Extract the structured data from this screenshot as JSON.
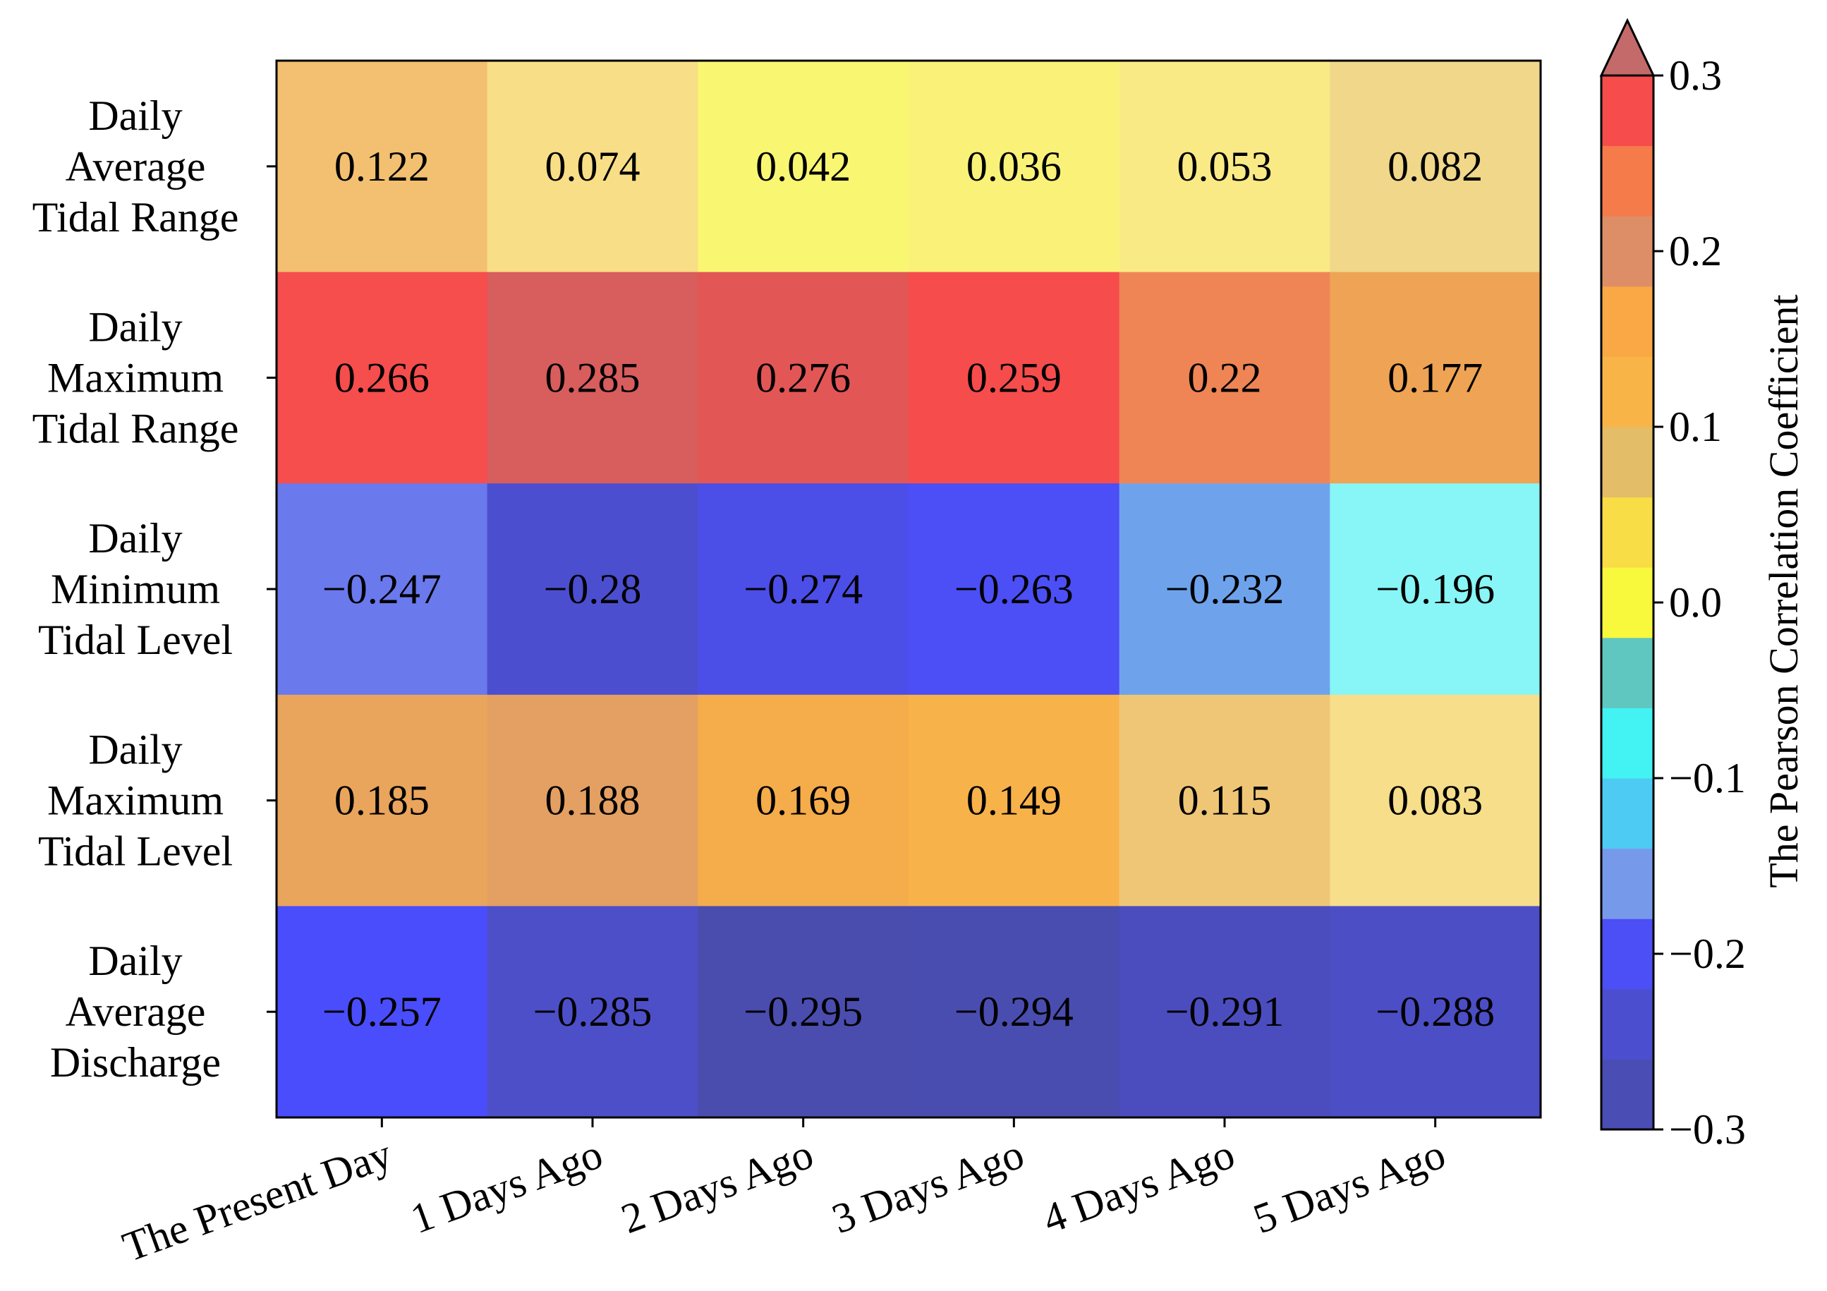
{
  "chart_data": {
    "type": "heatmap",
    "rows": [
      "Daily\nAverage\nTidal Range",
      "Daily\nMaximum\nTidal Range",
      "Daily\nMinimum\nTidal  Level",
      "Daily\nMaximum\nTidal  Level",
      "Daily\nAverage\nDischarge"
    ],
    "columns": [
      "The Present Day",
      "1 Days Ago",
      "2 Days Ago",
      "3 Days Ago",
      "4 Days Ago",
      "5 Days Ago"
    ],
    "values": [
      [
        0.122,
        0.074,
        0.042,
        0.036,
        0.053,
        0.082
      ],
      [
        0.266,
        0.285,
        0.276,
        0.259,
        0.22,
        0.177
      ],
      [
        -0.247,
        -0.28,
        -0.274,
        -0.263,
        -0.232,
        -0.196
      ],
      [
        0.185,
        0.188,
        0.169,
        0.149,
        0.115,
        0.083
      ],
      [
        -0.257,
        -0.285,
        -0.295,
        -0.294,
        -0.291,
        -0.288
      ]
    ],
    "labels": [
      [
        "0.122",
        "0.074",
        "0.042",
        "0.036",
        "0.053",
        "0.082"
      ],
      [
        "0.266",
        "0.285",
        "0.276",
        "0.259",
        "0.22",
        "0.177"
      ],
      [
        "−0.247",
        "−0.28",
        "−0.274",
        "−0.263",
        "−0.232",
        "−0.196"
      ],
      [
        "0.185",
        "0.188",
        "0.169",
        "0.149",
        "0.115",
        "0.083"
      ],
      [
        "−0.257",
        "−0.285",
        "−0.295",
        "−0.294",
        "−0.291",
        "−0.288"
      ]
    ],
    "colorbar": {
      "label": "The Pearson Correlation Coefficient",
      "range": [
        -0.3,
        0.3
      ],
      "extend": "max",
      "ticks": [
        0.3,
        0.2,
        0.1,
        0.0,
        -0.1,
        -0.2,
        -0.3
      ],
      "tick_labels": [
        "0.3",
        "0.2",
        "0.1",
        "0.0",
        "−0.1",
        "−0.2",
        "−0.3"
      ],
      "levels": [
        -0.3,
        -0.26,
        -0.22,
        -0.18,
        -0.14,
        -0.1,
        -0.06,
        -0.02,
        0.02,
        0.06,
        0.1,
        0.14,
        0.18,
        0.22,
        0.26,
        0.3
      ],
      "colors": [
        "#4A4DB4",
        "#4C4ED0",
        "#4B4FF5",
        "#7799EA",
        "#4DCBF2",
        "#43F2F2",
        "#5FC7C0",
        "#F8F83C",
        "#F8DD46",
        "#E3BD68",
        "#F9B448",
        "#F9A845",
        "#DE8E67",
        "#F57B4A",
        "#F74C4C",
        "#C85A5A"
      ],
      "extend_color": "#C46A6A"
    },
    "cell_colors": [
      [
        "#F2C070",
        "#F8DE86",
        "#F9F772",
        "#FAF278",
        "#FAEA86",
        "#F0D78A"
      ],
      [
        "#F64D4D",
        "#D85D5D",
        "#E35656",
        "#F74C4C",
        "#EF8554",
        "#EEA454"
      ],
      [
        "#6A79EC",
        "#4C4ED0",
        "#4C4EE8",
        "#4B4FF5",
        "#6EA3EC",
        "#88F5F6"
      ],
      [
        "#E9A55C",
        "#E4A062",
        "#F5AC4A",
        "#F8B24A",
        "#EFC676",
        "#F6DE8A"
      ],
      [
        "#4A4DFB",
        "#4D4FC8",
        "#4A4DAE",
        "#4A4DB0",
        "#4B4DBE",
        "#4C4EC6"
      ]
    ]
  }
}
